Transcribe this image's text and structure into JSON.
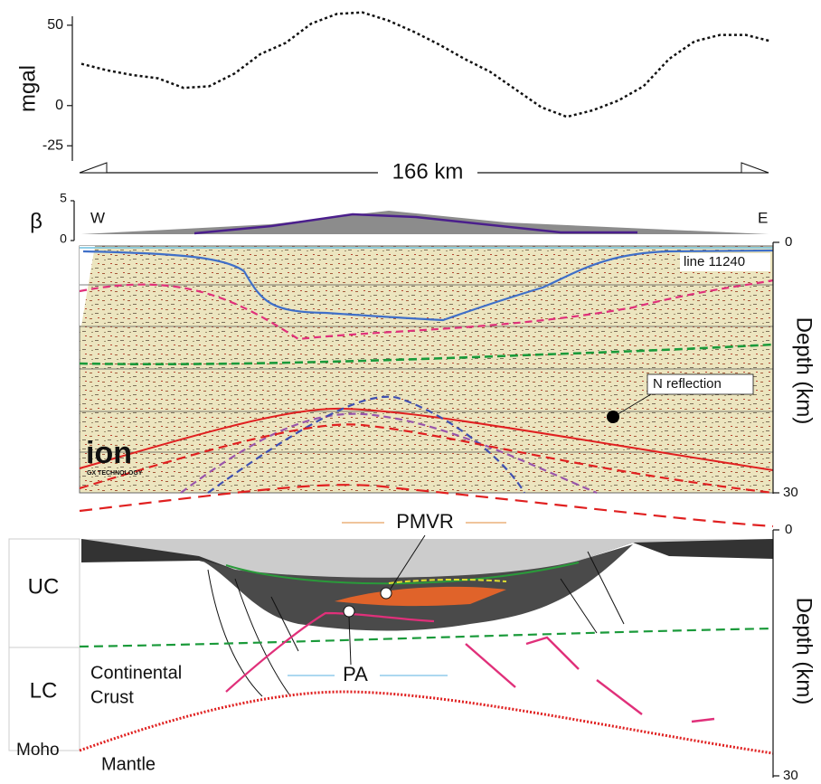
{
  "chart_data": {
    "type": "line",
    "y_label": "mgal",
    "values": [
      26,
      22,
      19,
      17,
      11,
      12,
      20,
      32,
      39,
      51,
      57,
      58,
      53,
      46,
      38,
      29,
      21,
      10,
      -1,
      -7,
      -3,
      3,
      12,
      29,
      40,
      44,
      44,
      40
    ],
    "color": "#111111",
    "line_style": "dotted",
    "ylim": [
      -35,
      55
    ],
    "yticks": [
      -25,
      0,
      50
    ]
  },
  "scale_bar": "166 km",
  "beta_panel": {
    "label": "β",
    "ticks": [
      "5",
      "0"
    ],
    "west": "W",
    "east": "E"
  },
  "seismic_panel": {
    "line_name": "line 11240",
    "annotation": "N reflection",
    "depth_label": "Depth (km)",
    "depth_ticks": [
      "0",
      "30"
    ],
    "logo": "ion",
    "logo_sub": "GX TECHNOLOGY"
  },
  "section_panel": {
    "pmvr": "PMVR",
    "pa": "PA",
    "uc": "UC",
    "lc": "LC",
    "crust_1": "Continental",
    "crust_2": "Crust",
    "moho": "Moho",
    "mantle": "Mantle",
    "depth_label": "Depth (km)",
    "depth_ticks": [
      "0",
      "30"
    ]
  }
}
